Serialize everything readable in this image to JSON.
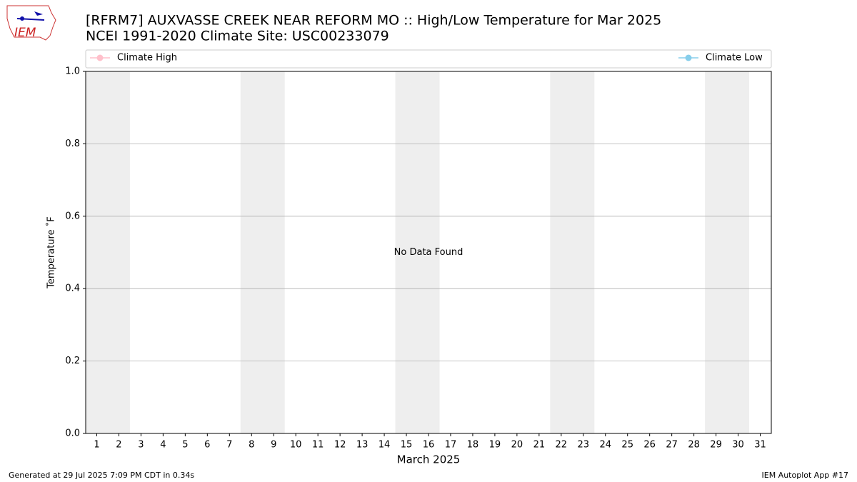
{
  "logo_text": "IEM",
  "footer": {
    "left": "Generated at 29 Jul 2025 7:09 PM CDT in 0.34s",
    "right": "IEM Autoplot App #17"
  },
  "chart_data": {
    "type": "line",
    "title": "[RFRM7] AUXVASSE CREEK NEAR REFORM  MO :: High/Low Temperature for Mar 2025",
    "subtitle": "NCEI 1991-2020 Climate Site: USC00233079",
    "ylabel": "Temperature $^\\circ$F",
    "xlabel": "March 2025",
    "annotation": "No Data Found",
    "x": [
      1,
      2,
      3,
      4,
      5,
      6,
      7,
      8,
      9,
      10,
      11,
      12,
      13,
      14,
      15,
      16,
      17,
      18,
      19,
      20,
      21,
      22,
      23,
      24,
      25,
      26,
      27,
      28,
      29,
      30,
      31
    ],
    "series": [
      {
        "name": "Climate High",
        "color": "#ffc0cb",
        "values": [
          null,
          null,
          null,
          null,
          null,
          null,
          null,
          null,
          null,
          null,
          null,
          null,
          null,
          null,
          null,
          null,
          null,
          null,
          null,
          null,
          null,
          null,
          null,
          null,
          null,
          null,
          null,
          null,
          null,
          null,
          null
        ]
      },
      {
        "name": "Climate Low",
        "color": "#87ceeb",
        "values": [
          null,
          null,
          null,
          null,
          null,
          null,
          null,
          null,
          null,
          null,
          null,
          null,
          null,
          null,
          null,
          null,
          null,
          null,
          null,
          null,
          null,
          null,
          null,
          null,
          null,
          null,
          null,
          null,
          null,
          null,
          null
        ]
      }
    ],
    "shaded_days": [
      [
        1,
        2
      ],
      [
        8,
        9
      ],
      [
        15,
        16
      ],
      [
        22,
        23
      ],
      [
        29,
        30
      ]
    ],
    "shade_color": "#eeeeee",
    "xlim": [
      0.5,
      31.5
    ],
    "xticks": [
      1,
      2,
      3,
      4,
      5,
      6,
      7,
      8,
      9,
      10,
      11,
      12,
      13,
      14,
      15,
      16,
      17,
      18,
      19,
      20,
      21,
      22,
      23,
      24,
      25,
      26,
      27,
      28,
      29,
      30,
      31
    ],
    "ylim": [
      0,
      1
    ],
    "yticks": [
      {
        "value": 0,
        "label": "0.0"
      },
      0.2,
      0.4,
      0.6,
      0.8,
      {
        "value": 1,
        "label": "1.0"
      }
    ],
    "grid": "y"
  }
}
